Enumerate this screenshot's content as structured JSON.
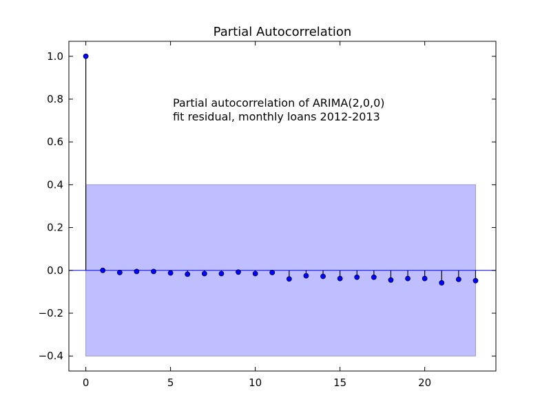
{
  "chart_data": {
    "type": "scatter",
    "title": "Partial Autocorrelation",
    "annotation": [
      "Partial autocorrelation of ARIMA(2,0,0)",
      "fit residual, monthly loans 2012-2013"
    ],
    "xlabel": "",
    "ylabel": "",
    "xlim": [
      -1,
      24.2
    ],
    "ylim": [
      -0.47,
      1.07
    ],
    "xticks": [
      0,
      5,
      10,
      15,
      20
    ],
    "xtick_labels": [
      "0",
      "5",
      "10",
      "15",
      "20"
    ],
    "yticks": [
      -0.4,
      -0.2,
      0.0,
      0.2,
      0.4,
      0.6,
      0.8,
      1.0
    ],
    "ytick_labels": [
      "−0.4",
      "−0.2",
      "0.0",
      "0.2",
      "0.4",
      "0.6",
      "0.8",
      "1.0"
    ],
    "grid": false,
    "confidence_band": {
      "lower": -0.4,
      "upper": 0.4,
      "x_start": 0,
      "x_end": 23
    },
    "series": [
      {
        "x": [
          0,
          1,
          2,
          3,
          4,
          5,
          6,
          7,
          8,
          9,
          10,
          11,
          12,
          13,
          14,
          15,
          16,
          17,
          18,
          19,
          20,
          21,
          22,
          23
        ],
        "values": [
          1.0,
          0.0,
          -0.01,
          -0.005,
          -0.005,
          -0.012,
          -0.018,
          -0.015,
          -0.015,
          -0.008,
          -0.015,
          -0.01,
          -0.04,
          -0.025,
          -0.028,
          -0.038,
          -0.032,
          -0.032,
          -0.045,
          -0.038,
          -0.038,
          -0.058,
          -0.042,
          -0.048
        ]
      }
    ],
    "colors": {
      "marker": "#0000ff",
      "band_fill": "#bfbfff",
      "band_stroke": "#9999cc",
      "zero_line": "#0000ff",
      "stem": "#000000"
    }
  }
}
